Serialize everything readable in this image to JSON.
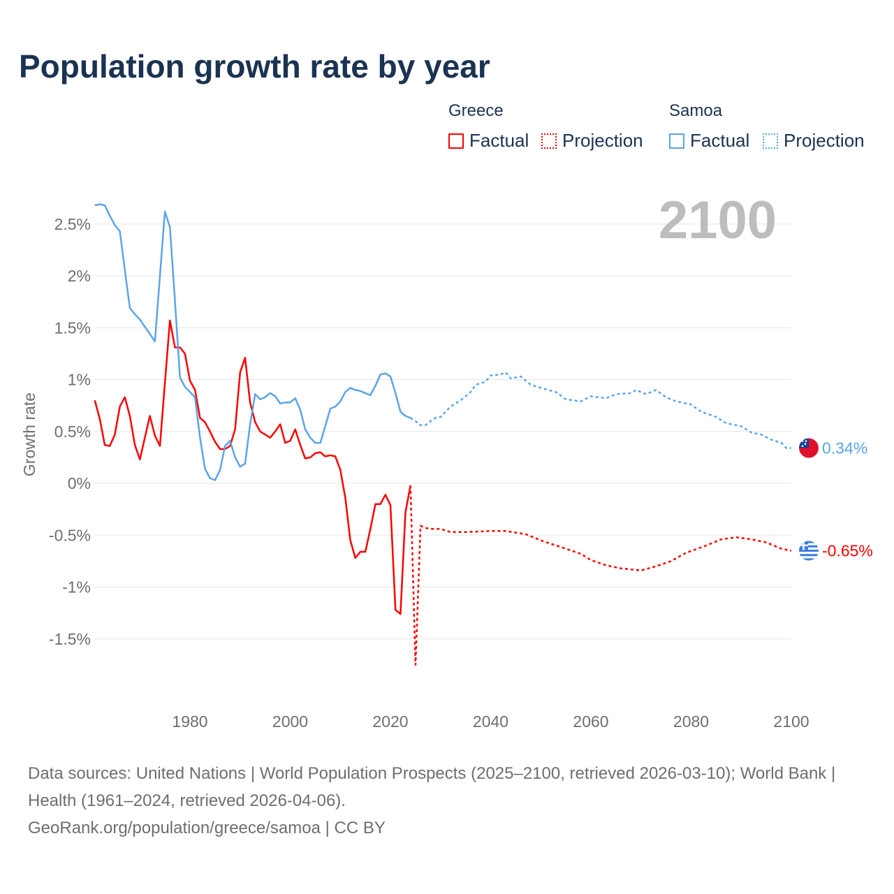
{
  "title": "Population growth rate by year",
  "legend": {
    "groups": [
      {
        "name": "Greece",
        "color": "#ff0000",
        "factual": "Factual",
        "projection": "Projection"
      },
      {
        "name": "Samoa",
        "color": "#5ba4e8",
        "factual": "Factual",
        "projection": "Projection"
      }
    ]
  },
  "current_year_label": "2100",
  "end_labels": {
    "samoa": "0.34%",
    "greece": "-0.65%"
  },
  "footer": {
    "sources": "Data sources: United Nations | World Population Prospects (2025–2100, retrieved 2026-03-10); World Bank | Health (1961–2024, retrieved 2026-04-06).",
    "credit": "GeoRank.org/population/greece/samoa | CC BY"
  },
  "chart_data": {
    "type": "line",
    "title": "Population growth rate by year",
    "xlabel": "",
    "ylabel": "Growth rate",
    "xlim": [
      1961,
      2100
    ],
    "ylim": [
      -2,
      2.8
    ],
    "x_ticks": [
      1980,
      2000,
      2020,
      2040,
      2060,
      2080,
      2100
    ],
    "y_ticks": [
      -1.5,
      -1,
      -0.5,
      0,
      0.5,
      1,
      1.5,
      2,
      2.5
    ],
    "y_tick_labels": [
      "-1.5%",
      "-1%",
      "-0.5%",
      "0%",
      "0.5%",
      "1%",
      "1.5%",
      "2%",
      "2.5%"
    ],
    "grid": true,
    "legend_position": "top-right",
    "series": [
      {
        "name": "Greece Factual",
        "color": "#ff0000",
        "dashed": false,
        "x": [
          1961,
          1962,
          1963,
          1964,
          1965,
          1966,
          1967,
          1968,
          1969,
          1970,
          1971,
          1972,
          1973,
          1974,
          1975,
          1976,
          1977,
          1978,
          1979,
          1980,
          1981,
          1982,
          1983,
          1984,
          1985,
          1986,
          1987,
          1988,
          1989,
          1990,
          1991,
          1992,
          1993,
          1994,
          1995,
          1996,
          1997,
          1998,
          1999,
          2000,
          2001,
          2002,
          2003,
          2004,
          2005,
          2006,
          2007,
          2008,
          2009,
          2010,
          2011,
          2012,
          2013,
          2014,
          2015,
          2016,
          2017,
          2018,
          2019,
          2020,
          2021,
          2022,
          2023,
          2024
        ],
        "y": [
          0.8,
          0.62,
          0.37,
          0.36,
          0.47,
          0.74,
          0.83,
          0.65,
          0.37,
          0.23,
          0.44,
          0.65,
          0.46,
          0.36,
          0.97,
          1.57,
          1.31,
          1.31,
          1.25,
          0.99,
          0.9,
          0.63,
          0.59,
          0.5,
          0.4,
          0.33,
          0.33,
          0.36,
          0.52,
          1.07,
          1.21,
          0.78,
          0.59,
          0.5,
          0.47,
          0.44,
          0.5,
          0.57,
          0.39,
          0.41,
          0.52,
          0.37,
          0.24,
          0.25,
          0.29,
          0.3,
          0.26,
          0.27,
          0.26,
          0.13,
          -0.14,
          -0.55,
          -0.72,
          -0.66,
          -0.66,
          -0.44,
          -0.2,
          -0.2,
          -0.11,
          -0.21,
          -1.22,
          -1.26,
          -0.28,
          -0.02
        ]
      },
      {
        "name": "Greece Projection",
        "color": "#ff0000",
        "dashed": true,
        "x": [
          2024,
          2025,
          2026,
          2027,
          2028,
          2030,
          2032,
          2035,
          2040,
          2043,
          2047,
          2050,
          2055,
          2058,
          2060,
          2063,
          2066,
          2070,
          2073,
          2076,
          2079,
          2083,
          2086,
          2089,
          2092,
          2095,
          2098,
          2100
        ],
        "y": [
          -0.02,
          -1.75,
          -0.41,
          -0.43,
          -0.44,
          -0.44,
          -0.47,
          -0.47,
          -0.46,
          -0.46,
          -0.49,
          -0.55,
          -0.63,
          -0.68,
          -0.74,
          -0.79,
          -0.82,
          -0.84,
          -0.8,
          -0.75,
          -0.67,
          -0.6,
          -0.54,
          -0.52,
          -0.54,
          -0.57,
          -0.63,
          -0.65
        ]
      },
      {
        "name": "Samoa Factual",
        "color": "#5ba4e8",
        "dashed": false,
        "x": [
          1961,
          1962,
          1963,
          1964,
          1965,
          1966,
          1967,
          1968,
          1969,
          1970,
          1971,
          1972,
          1973,
          1974,
          1975,
          1976,
          1977,
          1978,
          1979,
          1980,
          1981,
          1982,
          1983,
          1984,
          1985,
          1986,
          1987,
          1988,
          1989,
          1990,
          1991,
          1992,
          1993,
          1994,
          1995,
          1996,
          1997,
          1998,
          1999,
          2000,
          2001,
          2002,
          2003,
          2004,
          2005,
          2006,
          2007,
          2008,
          2009,
          2010,
          2011,
          2012,
          2013,
          2014,
          2015,
          2016,
          2017,
          2018,
          2019,
          2020,
          2021,
          2022,
          2023,
          2024
        ],
        "y": [
          2.68,
          2.69,
          2.68,
          2.58,
          2.49,
          2.43,
          2.06,
          1.69,
          1.63,
          1.58,
          1.51,
          1.44,
          1.37,
          2.0,
          2.62,
          2.47,
          1.76,
          1.02,
          0.93,
          0.88,
          0.83,
          0.44,
          0.14,
          0.05,
          0.03,
          0.13,
          0.36,
          0.41,
          0.25,
          0.16,
          0.19,
          0.57,
          0.86,
          0.81,
          0.83,
          0.87,
          0.84,
          0.77,
          0.78,
          0.78,
          0.82,
          0.71,
          0.52,
          0.44,
          0.39,
          0.39,
          0.55,
          0.72,
          0.74,
          0.79,
          0.88,
          0.92,
          0.9,
          0.89,
          0.87,
          0.85,
          0.94,
          1.05,
          1.06,
          1.03,
          0.87,
          0.69,
          0.65,
          0.63
        ]
      },
      {
        "name": "Samoa Projection",
        "color": "#5ba4e8",
        "dashed": true,
        "x": [
          2024,
          2025,
          2026,
          2027,
          2028,
          2029,
          2030,
          2032,
          2034,
          2036,
          2037,
          2039,
          2040,
          2042,
          2043,
          2044,
          2046,
          2048,
          2050,
          2053,
          2055,
          2058,
          2060,
          2063,
          2065,
          2068,
          2069,
          2071,
          2073,
          2075,
          2077,
          2080,
          2082,
          2085,
          2087,
          2090,
          2092,
          2094,
          2096,
          2098,
          2099,
          2100
        ],
        "y": [
          0.63,
          0.6,
          0.56,
          0.56,
          0.6,
          0.63,
          0.64,
          0.74,
          0.8,
          0.88,
          0.95,
          0.98,
          1.04,
          1.05,
          1.07,
          1.01,
          1.03,
          0.95,
          0.92,
          0.88,
          0.81,
          0.79,
          0.84,
          0.82,
          0.86,
          0.87,
          0.9,
          0.86,
          0.9,
          0.83,
          0.79,
          0.76,
          0.69,
          0.64,
          0.58,
          0.55,
          0.49,
          0.47,
          0.42,
          0.39,
          0.34,
          0.34
        ]
      }
    ]
  }
}
